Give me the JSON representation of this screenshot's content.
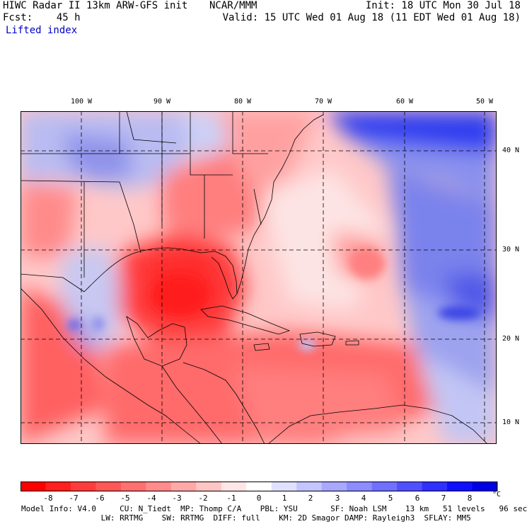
{
  "header": {
    "model_line": "HIWC Radar II 13km ARW-GFS init",
    "fcst_label": "Fcst:",
    "fcst_value": "45 h",
    "agency": "NCAR/MMM",
    "init": "Init: 18 UTC Mon 30 Jul 18",
    "valid": "Valid: 15 UTC Wed 01 Aug 18 (11 EDT Wed 01 Aug 18)",
    "field": "Lifted index"
  },
  "map": {
    "lon_labels": [
      "100 W",
      "90 W",
      "80 W",
      "70 W",
      "60 W",
      "50 W"
    ],
    "lat_labels": [
      "40 N",
      "30 N",
      "20 N",
      "10 N"
    ]
  },
  "colorbar": {
    "labels": [
      "-8",
      "-7",
      "-6",
      "-5",
      "-4",
      "-3",
      "-2",
      "-1",
      "0",
      "1",
      "2",
      "3",
      "4",
      "5",
      "6",
      "7",
      "8"
    ],
    "unit": "°C",
    "colors": [
      "#ff0000",
      "#ff2020",
      "#ff3c3c",
      "#ff5656",
      "#ff7070",
      "#ff8c8c",
      "#ffa8a8",
      "#ffc4c4",
      "#ffe6e6",
      "#ffffff",
      "#e0e0ff",
      "#c4c4ff",
      "#a8a8ff",
      "#8c8cff",
      "#7070ff",
      "#5050ff",
      "#3030ff",
      "#1010ff",
      "#0000e6"
    ]
  },
  "footer": {
    "line1": "Model Info: V4.0     CU: N_Tiedt  MP: Thomp C/A    PBL: YSU       SF: Noah LSM    13 km   51 levels   96 sec",
    "line2": "                 LW: RRTMG    SW: RRTMG  DIFF: full    KM: 2D Smagor DAMP: Rayleigh3  SFLAY: MM5"
  }
}
